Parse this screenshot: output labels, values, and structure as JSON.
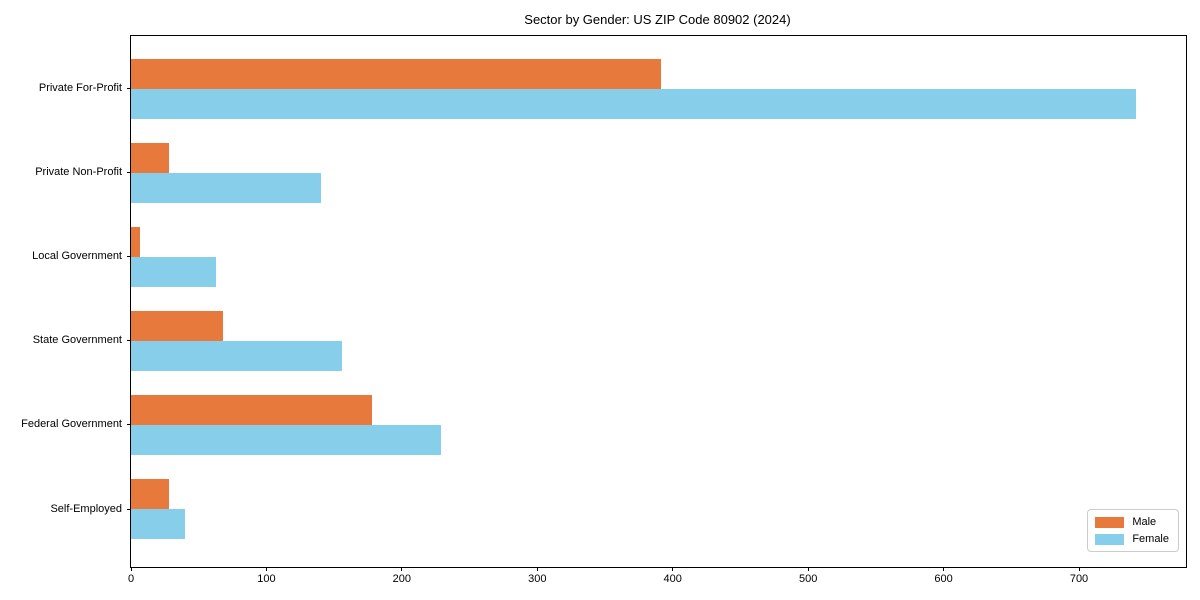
{
  "chart_data": {
    "type": "bar",
    "orientation": "horizontal",
    "title": "Sector by Gender: US ZIP Code 80902 (2024)",
    "categories": [
      "Private For-Profit",
      "Private Non-Profit",
      "Local Government",
      "State Government",
      "Federal Government",
      "Self-Employed"
    ],
    "series": [
      {
        "name": "Male",
        "color": "#E8793D",
        "values": [
          391,
          28,
          7,
          68,
          178,
          28
        ]
      },
      {
        "name": "Female",
        "color": "#87CEEB",
        "values": [
          742,
          140,
          63,
          156,
          229,
          40
        ]
      }
    ],
    "xlabel": "",
    "ylabel": "",
    "xlim": [
      0,
      779
    ],
    "xticks": [
      0,
      100,
      200,
      300,
      400,
      500,
      600,
      700
    ],
    "grid": false,
    "legend_position": "lower right",
    "colors": {
      "male": "#E8793D",
      "female": "#87CEEB",
      "spine": "#000000",
      "background": "#ffffff",
      "legend_border": "#cccccc"
    }
  }
}
